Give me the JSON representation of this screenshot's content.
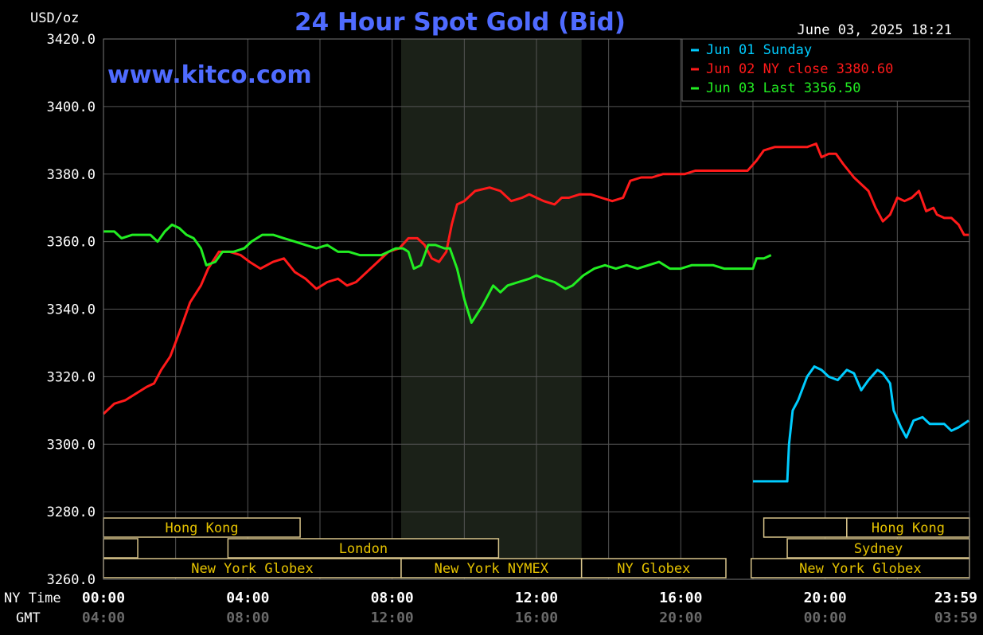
{
  "chart_data": {
    "type": "line",
    "title": "24 Hour Spot Gold (Bid)",
    "ylabel": "USD/oz",
    "timestamp": "June 03, 2025 18:21",
    "watermark": "www.kitco.com",
    "ylim": [
      3260,
      3420
    ],
    "yticks": [
      "3420.0",
      "3400.0",
      "3380.0",
      "3360.0",
      "3340.0",
      "3320.0",
      "3300.0",
      "3280.0",
      "3260.0"
    ],
    "x_row_labels": [
      "NY Time",
      "GMT"
    ],
    "xticks_ny": [
      "00:00",
      "04:00",
      "08:00",
      "12:00",
      "16:00",
      "20:00",
      "23:59"
    ],
    "xticks_gmt": [
      "04:00",
      "08:00",
      "12:00",
      "16:00",
      "20:00",
      "00:00",
      "03:59"
    ],
    "series": [
      {
        "name": "Jun 01 Sunday",
        "legend": "Jun 01 Sunday",
        "color": "#00ccff",
        "points": [
          [
            18.0,
            3289
          ],
          [
            18.95,
            3289
          ],
          [
            19.0,
            3300
          ],
          [
            19.1,
            3310
          ],
          [
            19.25,
            3313
          ],
          [
            19.5,
            3320
          ],
          [
            19.7,
            3323
          ],
          [
            19.9,
            3322
          ],
          [
            20.1,
            3320
          ],
          [
            20.35,
            3319
          ],
          [
            20.6,
            3322
          ],
          [
            20.8,
            3321
          ],
          [
            21.0,
            3316
          ],
          [
            21.2,
            3319
          ],
          [
            21.45,
            3322
          ],
          [
            21.6,
            3321
          ],
          [
            21.8,
            3318
          ],
          [
            21.9,
            3310
          ],
          [
            22.1,
            3305
          ],
          [
            22.25,
            3302
          ],
          [
            22.45,
            3307
          ],
          [
            22.7,
            3308
          ],
          [
            22.9,
            3306
          ],
          [
            23.1,
            3306
          ],
          [
            23.3,
            3306
          ],
          [
            23.5,
            3304
          ],
          [
            23.7,
            3305
          ],
          [
            23.98,
            3307
          ]
        ]
      },
      {
        "name": "Jun 02 NY close 3380.60",
        "legend": "Jun 02 NY close 3380.60",
        "color": "#ff1a1a",
        "points": [
          [
            0.0,
            3309
          ],
          [
            0.3,
            3312
          ],
          [
            0.6,
            3313
          ],
          [
            0.9,
            3315
          ],
          [
            1.2,
            3317
          ],
          [
            1.4,
            3318
          ],
          [
            1.6,
            3322
          ],
          [
            1.85,
            3326
          ],
          [
            2.1,
            3333
          ],
          [
            2.4,
            3342
          ],
          [
            2.7,
            3347
          ],
          [
            2.9,
            3352
          ],
          [
            3.2,
            3357
          ],
          [
            3.5,
            3357
          ],
          [
            3.8,
            3356
          ],
          [
            4.05,
            3354
          ],
          [
            4.35,
            3352
          ],
          [
            4.7,
            3354
          ],
          [
            5.0,
            3355
          ],
          [
            5.3,
            3351
          ],
          [
            5.6,
            3349
          ],
          [
            5.9,
            3346
          ],
          [
            6.2,
            3348
          ],
          [
            6.5,
            3349
          ],
          [
            6.75,
            3347
          ],
          [
            7.0,
            3348
          ],
          [
            7.3,
            3351
          ],
          [
            7.6,
            3354
          ],
          [
            7.9,
            3357
          ],
          [
            8.2,
            3358
          ],
          [
            8.45,
            3361
          ],
          [
            8.7,
            3361
          ],
          [
            8.9,
            3359
          ],
          [
            9.1,
            3355
          ],
          [
            9.3,
            3354
          ],
          [
            9.5,
            3357
          ],
          [
            9.65,
            3365
          ],
          [
            9.8,
            3371
          ],
          [
            10.0,
            3372
          ],
          [
            10.3,
            3375
          ],
          [
            10.7,
            3376
          ],
          [
            11.0,
            3375
          ],
          [
            11.3,
            3372
          ],
          [
            11.6,
            3373
          ],
          [
            11.8,
            3374
          ],
          [
            12.0,
            3373
          ],
          [
            12.2,
            3372
          ],
          [
            12.5,
            3371
          ],
          [
            12.7,
            3373
          ],
          [
            12.9,
            3373
          ],
          [
            13.2,
            3374
          ],
          [
            13.5,
            3374
          ],
          [
            13.8,
            3373
          ],
          [
            14.1,
            3372
          ],
          [
            14.4,
            3373
          ],
          [
            14.6,
            3378
          ],
          [
            14.9,
            3379
          ],
          [
            15.2,
            3379
          ],
          [
            15.5,
            3380
          ],
          [
            15.8,
            3380
          ],
          [
            16.1,
            3380
          ],
          [
            16.4,
            3381
          ],
          [
            16.7,
            3381
          ],
          [
            17.0,
            3381
          ],
          [
            17.3,
            3381
          ],
          [
            17.6,
            3381
          ],
          [
            17.85,
            3381
          ],
          [
            18.1,
            3384
          ],
          [
            18.3,
            3387
          ],
          [
            18.6,
            3388
          ],
          [
            18.9,
            3388
          ],
          [
            19.2,
            3388
          ],
          [
            19.5,
            3388
          ],
          [
            19.75,
            3389
          ],
          [
            19.9,
            3385
          ],
          [
            20.1,
            3386
          ],
          [
            20.3,
            3386
          ],
          [
            20.5,
            3383
          ],
          [
            20.8,
            3379
          ],
          [
            21.0,
            3377
          ],
          [
            21.2,
            3375
          ],
          [
            21.4,
            3370
          ],
          [
            21.6,
            3366
          ],
          [
            21.8,
            3368
          ],
          [
            22.0,
            3373
          ],
          [
            22.2,
            3372
          ],
          [
            22.4,
            3373
          ],
          [
            22.6,
            3375
          ],
          [
            22.8,
            3369
          ],
          [
            23.0,
            3370
          ],
          [
            23.1,
            3368
          ],
          [
            23.3,
            3367
          ],
          [
            23.5,
            3367
          ],
          [
            23.7,
            3365
          ],
          [
            23.85,
            3362
          ],
          [
            23.98,
            3362
          ]
        ]
      },
      {
        "name": "Jun 03 Last 3356.50",
        "legend": "Jun 03 Last 3356.50",
        "color": "#22ee22",
        "points": [
          [
            0.0,
            3363
          ],
          [
            0.3,
            3363
          ],
          [
            0.5,
            3361
          ],
          [
            0.8,
            3362
          ],
          [
            1.1,
            3362
          ],
          [
            1.3,
            3362
          ],
          [
            1.5,
            3360
          ],
          [
            1.7,
            3363
          ],
          [
            1.9,
            3365
          ],
          [
            2.1,
            3364
          ],
          [
            2.3,
            3362
          ],
          [
            2.5,
            3361
          ],
          [
            2.7,
            3358
          ],
          [
            2.85,
            3353
          ],
          [
            3.1,
            3354
          ],
          [
            3.3,
            3357
          ],
          [
            3.6,
            3357
          ],
          [
            3.9,
            3358
          ],
          [
            4.1,
            3360
          ],
          [
            4.4,
            3362
          ],
          [
            4.7,
            3362
          ],
          [
            5.0,
            3361
          ],
          [
            5.3,
            3360
          ],
          [
            5.6,
            3359
          ],
          [
            5.9,
            3358
          ],
          [
            6.2,
            3359
          ],
          [
            6.5,
            3357
          ],
          [
            6.8,
            3357
          ],
          [
            7.1,
            3356
          ],
          [
            7.4,
            3356
          ],
          [
            7.7,
            3356
          ],
          [
            7.9,
            3357
          ],
          [
            8.1,
            3358
          ],
          [
            8.3,
            3358
          ],
          [
            8.45,
            3357
          ],
          [
            8.6,
            3352
          ],
          [
            8.8,
            3353
          ],
          [
            9.0,
            3359
          ],
          [
            9.2,
            3359
          ],
          [
            9.45,
            3358
          ],
          [
            9.6,
            3358
          ],
          [
            9.8,
            3352
          ],
          [
            10.0,
            3343
          ],
          [
            10.2,
            3336
          ],
          [
            10.5,
            3341
          ],
          [
            10.8,
            3347
          ],
          [
            11.0,
            3345
          ],
          [
            11.2,
            3347
          ],
          [
            11.5,
            3348
          ],
          [
            11.8,
            3349
          ],
          [
            12.0,
            3350
          ],
          [
            12.2,
            3349
          ],
          [
            12.5,
            3348
          ],
          [
            12.8,
            3346
          ],
          [
            13.0,
            3347
          ],
          [
            13.3,
            3350
          ],
          [
            13.6,
            3352
          ],
          [
            13.9,
            3353
          ],
          [
            14.2,
            3352
          ],
          [
            14.5,
            3353
          ],
          [
            14.8,
            3352
          ],
          [
            15.1,
            3353
          ],
          [
            15.4,
            3354
          ],
          [
            15.7,
            3352
          ],
          [
            16.0,
            3352
          ],
          [
            16.3,
            3353
          ],
          [
            16.6,
            3353
          ],
          [
            16.9,
            3353
          ],
          [
            17.2,
            3352
          ],
          [
            17.5,
            3352
          ],
          [
            17.8,
            3352
          ],
          [
            18.0,
            3352
          ],
          [
            18.1,
            3355
          ],
          [
            18.3,
            3355
          ],
          [
            18.5,
            3356
          ]
        ]
      }
    ],
    "sessions": [
      {
        "label": "Hong Kong",
        "row": 0,
        "start": 0.0,
        "end": 5.45
      },
      {
        "label": "",
        "row": 1,
        "start": 0.0,
        "end": 0.95
      },
      {
        "label": "London",
        "row": 1,
        "start": 3.45,
        "end": 10.95
      },
      {
        "label": "New York Globex",
        "row": 2,
        "start": 0.0,
        "end": 8.25
      },
      {
        "label": "New York NYMEX",
        "row": 2,
        "start": 8.25,
        "end": 13.25
      },
      {
        "label": "NY Globex",
        "row": 2,
        "start": 13.25,
        "end": 17.25
      },
      {
        "label": "",
        "row": 0,
        "start": 18.3,
        "end": 20.6
      },
      {
        "label": "Hong Kong",
        "row": 0,
        "start": 20.6,
        "end": 24.0
      },
      {
        "label": "Sydney",
        "row": 1,
        "start": 18.95,
        "end": 24.0
      },
      {
        "label": "New York Globex",
        "row": 2,
        "start": 17.95,
        "end": 24.0
      }
    ],
    "nymex_shade": [
      8.25,
      13.25
    ],
    "grid": true,
    "legend_position": "top-right",
    "colors": {
      "background": "#000000",
      "grid": "#555555",
      "axis_text": "#ffffff",
      "title": "#4f6bff",
      "session_text": "#e6c300",
      "session_border": "#d8c48a",
      "shade": "#1b2118"
    }
  }
}
